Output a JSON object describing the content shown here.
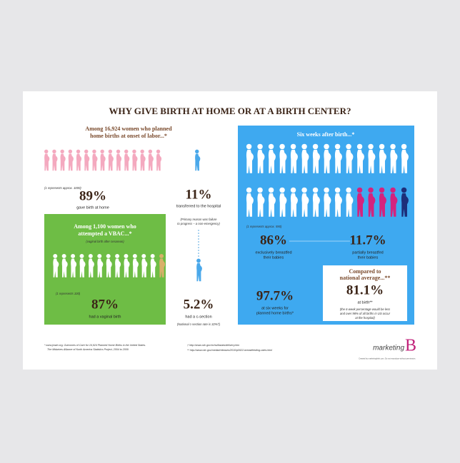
{
  "title": "WHY GIVE BIRTH AT HOME OR AT A BIRTH CENTER?",
  "home": {
    "heading": [
      "Among 16,924 women who planned",
      "home births at onset of labor...*"
    ],
    "scale": "(1 represents approx. 1000)",
    "stat_home": "89%",
    "stat_home_label": "gave birth at home",
    "stat_transfer": "11%",
    "stat_transfer_label": "transferred to the hospital",
    "transfer_note": [
      "(Primary reason was failure",
      "to progress – a non-emergency)"
    ]
  },
  "vbac": {
    "heading": [
      "Among 1,100 women who",
      "attempted a VBAC...*"
    ],
    "subheading": "(vaginal birth after cesarean)",
    "scale": "(1 represents 100)",
    "stat": "87%",
    "stat_label": "had a vaginal birth",
    "csection_stat": "5.2%",
    "csection_label": "had a c-section",
    "csection_note": "(National c-section rate is 32%†)"
  },
  "breastfeeding": {
    "heading": "Six weeks after birth...*",
    "scale": "(1 represents approx. 590)",
    "exclusive": "86%",
    "exclusive_label": [
      "exclusively breastfed",
      "their babies"
    ],
    "partial": "11.7%",
    "partial_label": [
      "partially breastfed",
      "their babies"
    ],
    "total": "97.7%",
    "total_label": [
      "at six weeks for",
      "planned home births*"
    ],
    "compare_heading": [
      "Compared to",
      "national average...**"
    ],
    "compare_stat": "81.1%",
    "compare_label": "at birth**",
    "compare_note": [
      "(the 6-week percentage would be less",
      "and over 98% of all births in US occur",
      "at the hospital)"
    ]
  },
  "footer": {
    "source_1": [
      "*   www.jmwh.org, Outcomes of Care for 16,924 Planned Home Births in the United States.",
      "The Midwives Alliance of North America Statistics Project, 2004 to 2009"
    ],
    "source_2": "†   http://www.cdc.gov/nchs/fastats/delivery.htm",
    "source_3": "**  http://www.cdc.gov/media/releases/2010/p0622-breastfeeding-rates.html",
    "logo_text": "marketing",
    "logo_mark": "B",
    "credit": "Created by marketingbirth.com. Do not reproduce without permission."
  }
}
